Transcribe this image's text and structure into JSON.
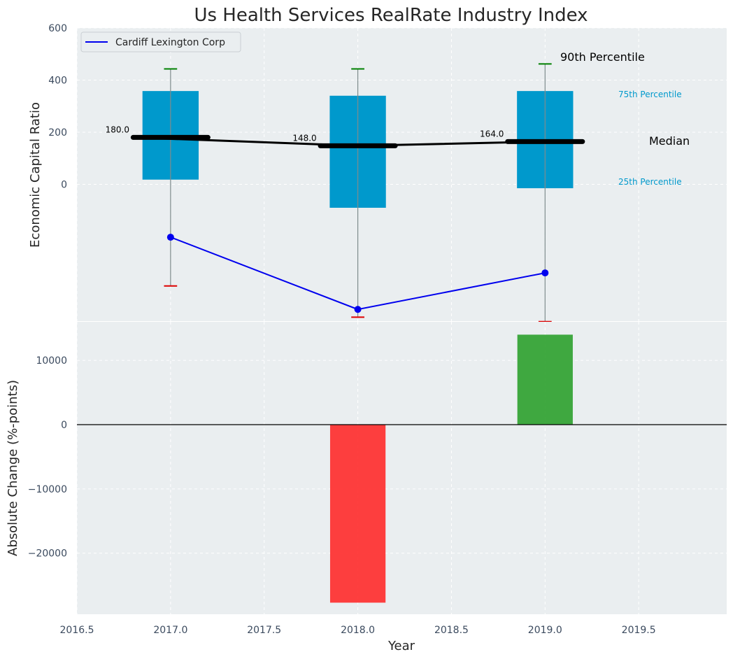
{
  "chart_data": [
    {
      "type": "box",
      "title": "Us Health Services RealRate Industry Index",
      "ylabel": "Economic Capital Ratio",
      "xlabel": "",
      "xlim": [
        2016.5,
        2019.97
      ],
      "ylim": [
        -525,
        600
      ],
      "yticks": [
        0,
        200,
        400,
        600
      ],
      "grid": true,
      "legend": {
        "position": "top-left",
        "entries": [
          {
            "name": "Cardiff Lexington Corp",
            "color": "#0000ee"
          }
        ]
      },
      "boxes": [
        {
          "x": 2017,
          "p10": -390,
          "p25": 18,
          "median": 180,
          "p75": 358,
          "p90": 443
        },
        {
          "x": 2018,
          "p10": -510,
          "p25": -90,
          "median": 148,
          "p75": 340,
          "p90": 443
        },
        {
          "x": 2019,
          "p10": -527,
          "p25": -15,
          "median": 164,
          "p75": 358,
          "p90": 462
        }
      ],
      "median_labels": [
        "180.0",
        "148.0",
        "164.0"
      ],
      "series": [
        {
          "name": "Cardiff Lexington Corp",
          "x": [
            2017,
            2018,
            2019
          ],
          "values": [
            -203,
            -480,
            -340
          ]
        }
      ],
      "annotations": {
        "p90": "90th Percentile",
        "p75": "75th Percentile",
        "median": "Median",
        "p25": "25th Percentile"
      },
      "colors": {
        "box": "#0099cc",
        "median": "#000000",
        "p90_cap": "#008000",
        "p10_cap": "#dd0000",
        "company": "#0000ee",
        "annot_blue": "#0099cc"
      }
    },
    {
      "type": "bar",
      "ylabel": "Absolute Change (%-points)",
      "xlabel": "Year",
      "xlim": [
        2016.5,
        2019.97
      ],
      "ylim": [
        -29500,
        16000
      ],
      "yticks": [
        -20000,
        -10000,
        0,
        10000
      ],
      "xticks": [
        2016.5,
        2017.0,
        2017.5,
        2018.0,
        2018.5,
        2019.0,
        2019.5
      ],
      "grid": true,
      "bars": [
        {
          "x": 2018,
          "value": -27700,
          "color": "#ff2a2a"
        },
        {
          "x": 2019,
          "value": 14000,
          "color": "#2ca02c"
        }
      ]
    }
  ]
}
